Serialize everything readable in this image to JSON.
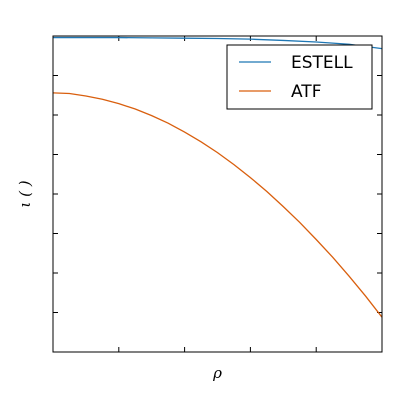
{
  "chart_data": {
    "type": "line",
    "xlabel": "ρ",
    "ylabel": "ι ( )",
    "xlim": [
      0,
      1
    ],
    "ylim": [
      0,
      1
    ],
    "x_ticks": [
      0.2,
      0.4,
      0.6,
      0.8
    ],
    "y_ticks": [
      0.125,
      0.25,
      0.375,
      0.5,
      0.625,
      0.75,
      0.875
    ],
    "grid": false,
    "legend_placement": "top-right",
    "series": [
      {
        "name": "ESTELL",
        "color": "#1f77b4",
        "x": [
          0.0,
          0.1,
          0.2,
          0.3,
          0.4,
          0.5,
          0.6,
          0.7,
          0.8,
          0.9,
          1.0
        ],
        "y": [
          0.995,
          0.995,
          0.995,
          0.994,
          0.993,
          0.992,
          0.99,
          0.986,
          0.981,
          0.974,
          0.96
        ]
      },
      {
        "name": "ATF",
        "color": "#d95f0e",
        "x": [
          0.0,
          0.05,
          0.1,
          0.15,
          0.2,
          0.25,
          0.3,
          0.35,
          0.4,
          0.45,
          0.5,
          0.55,
          0.6,
          0.65,
          0.7,
          0.75,
          0.8,
          0.85,
          0.9,
          0.95,
          1.0
        ],
        "y": [
          0.82,
          0.818,
          0.81,
          0.8,
          0.786,
          0.769,
          0.748,
          0.724,
          0.696,
          0.665,
          0.631,
          0.593,
          0.552,
          0.508,
          0.46,
          0.41,
          0.356,
          0.3,
          0.24,
          0.177,
          0.11
        ]
      }
    ]
  }
}
